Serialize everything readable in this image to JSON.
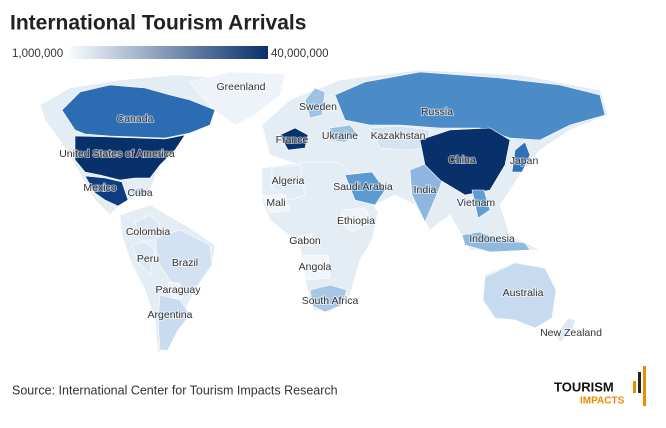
{
  "title": "International Tourism Arrivals",
  "legend": {
    "min": {
      "value": 1000000,
      "label": "1,000,000"
    },
    "max": {
      "value": 40000000,
      "label": "40,000,000"
    },
    "colors": [
      "#f7fbff",
      "#08306b"
    ]
  },
  "countries": [
    {
      "name": "Greenland",
      "color": "#eef3f9"
    },
    {
      "name": "Canada",
      "color": "#2b6cb3"
    },
    {
      "name": "United States of America",
      "color": "#08306b"
    },
    {
      "name": "Mexico",
      "color": "#0d3c80"
    },
    {
      "name": "Cuba",
      "color": "#a9c8e6"
    },
    {
      "name": "Colombia",
      "color": "#dbe7f3"
    },
    {
      "name": "Peru",
      "color": "#dde8f4"
    },
    {
      "name": "Brazil",
      "color": "#d2e2f2"
    },
    {
      "name": "Paraguay",
      "color": "#eef3f9"
    },
    {
      "name": "Argentina",
      "color": "#c9dcef"
    },
    {
      "name": "Sweden",
      "color": "#9ec2e4"
    },
    {
      "name": "France",
      "color": "#08306b"
    },
    {
      "name": "Ukraine",
      "color": "#9dc0e2"
    },
    {
      "name": "Russia",
      "color": "#4b8bc8"
    },
    {
      "name": "Kazakhstan",
      "color": "#d6e4f2"
    },
    {
      "name": "Algeria",
      "color": "#e3ecf5"
    },
    {
      "name": "Mali",
      "color": "#f2f6fb"
    },
    {
      "name": "Ethiopia",
      "color": "#eef3f9"
    },
    {
      "name": "Gabon",
      "color": "#f2f6fb"
    },
    {
      "name": "Angola",
      "color": "#f2f6fb"
    },
    {
      "name": "South Africa",
      "color": "#a7c7e6"
    },
    {
      "name": "Saudi Arabia",
      "color": "#5c9bd1"
    },
    {
      "name": "India",
      "color": "#8db7de"
    },
    {
      "name": "China",
      "color": "#08306b"
    },
    {
      "name": "Japan",
      "color": "#2f71b6"
    },
    {
      "name": "Vietnam",
      "color": "#5f9dd2"
    },
    {
      "name": "Indonesia",
      "color": "#8fb9df"
    },
    {
      "name": "Australia",
      "color": "#c6dbef"
    },
    {
      "name": "New Zealand",
      "color": "#dce8f4"
    }
  ],
  "source": "Source: International Center for Tourism Impacts Research",
  "logo": {
    "line1": "TOURISM",
    "line2": "IMPACTS"
  }
}
